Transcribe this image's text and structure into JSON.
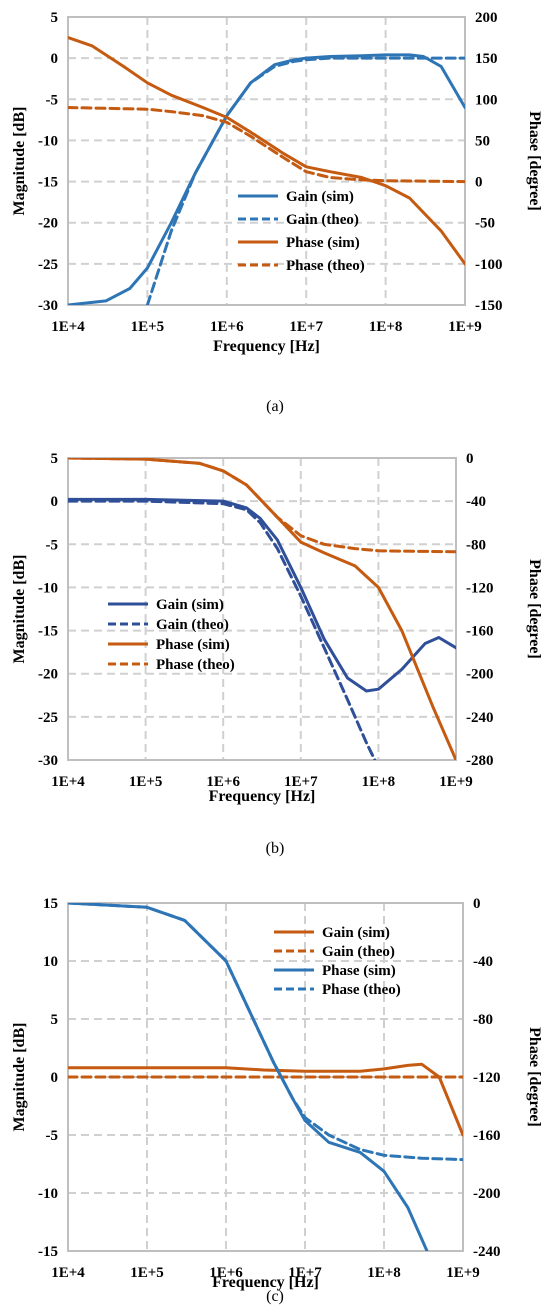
{
  "colors": {
    "blue": "#2e75b6",
    "navy": "#2f4f99",
    "orange": "#c55a11",
    "grid": "#d0d0d0",
    "frame": "#bfbfbf"
  },
  "chart_data": [
    {
      "type": "line",
      "caption": "(a)",
      "xlabel": "Frequency [Hz]",
      "ylabel": "Magnitude [dB]",
      "y2label": "Phase [degree]",
      "x_scale": "log",
      "xlim": [
        10000,
        1000000000
      ],
      "x_tick_labels": [
        "1E+4",
        "1E+5",
        "1E+6",
        "1E+7",
        "1E+8",
        "1E+9"
      ],
      "ylim": [
        -30,
        5
      ],
      "y_ticks": [
        5,
        0,
        -5,
        -10,
        -15,
        -20,
        -25,
        -30
      ],
      "y2lim": [
        -150,
        200
      ],
      "y2_ticks": [
        200,
        150,
        100,
        50,
        0,
        -50,
        -100,
        -150
      ],
      "grid": true,
      "legend_position": "center-right",
      "series": [
        {
          "name": "Gain (sim)",
          "axis": "left",
          "color": "#2e75b6",
          "dash": false,
          "x": [
            10000,
            30000,
            60000,
            100000,
            200000,
            400000,
            1000000,
            2000000,
            4000000,
            7000000,
            10000000,
            20000000,
            50000000,
            100000000,
            200000000,
            300000000,
            500000000,
            1000000000
          ],
          "y": [
            -30,
            -29.5,
            -28,
            -25.5,
            -20,
            -14,
            -7,
            -3,
            -0.8,
            -0.2,
            0,
            0.2,
            0.3,
            0.4,
            0.4,
            0.2,
            -1,
            -6
          ]
        },
        {
          "name": "Gain (theo)",
          "axis": "left",
          "color": "#2e75b6",
          "dash": true,
          "x": [
            100000,
            200000,
            400000,
            1000000,
            2000000,
            4000000,
            7000000,
            10000000,
            20000000,
            100000000,
            1000000000
          ],
          "y": [
            -30,
            -21,
            -14,
            -7,
            -3,
            -1,
            -0.4,
            -0.2,
            0,
            0,
            0
          ]
        },
        {
          "name": "Phase (sim)",
          "axis": "right",
          "color": "#c55a11",
          "dash": false,
          "x": [
            10000,
            20000,
            50000,
            100000,
            200000,
            500000,
            1000000,
            2000000,
            5000000,
            10000000,
            20000000,
            50000000,
            100000000,
            200000000,
            500000000,
            1000000000
          ],
          "y": [
            175,
            165,
            140,
            120,
            105,
            90,
            78,
            60,
            35,
            18,
            12,
            5,
            -5,
            -20,
            -60,
            -100
          ]
        },
        {
          "name": "Phase (theo)",
          "axis": "right",
          "color": "#c55a11",
          "dash": true,
          "x": [
            10000,
            100000,
            200000,
            500000,
            1000000,
            2000000,
            5000000,
            10000000,
            20000000,
            50000000,
            100000000,
            1000000000
          ],
          "y": [
            90,
            88,
            85,
            80,
            72,
            55,
            30,
            12,
            5,
            2,
            1,
            0
          ]
        }
      ]
    },
    {
      "type": "line",
      "caption": "(b)",
      "xlabel": "Frequency [Hz]",
      "ylabel": "Magnitude [dB]",
      "y2label": "Phase [degree]",
      "x_scale": "log",
      "xlim": [
        10000,
        1000000000
      ],
      "x_tick_labels": [
        "1E+4",
        "1E+5",
        "1E+6",
        "1E+7",
        "1E+8",
        "1E+9"
      ],
      "ylim": [
        -30,
        5
      ],
      "y_ticks": [
        5,
        0,
        -5,
        -10,
        -15,
        -20,
        -25,
        -30
      ],
      "y2lim": [
        -280,
        0
      ],
      "y2_ticks": [
        0,
        -40,
        -80,
        -120,
        -160,
        -200,
        -240,
        -280
      ],
      "grid": true,
      "legend_position": "center-left",
      "series": [
        {
          "name": "Gain (sim)",
          "axis": "left",
          "color": "#2f4f99",
          "dash": false,
          "x": [
            10000,
            100000,
            1000000,
            2000000,
            3000000,
            5000000,
            10000000,
            20000000,
            40000000,
            70000000,
            100000000,
            200000000,
            400000000,
            600000000,
            1000000000
          ],
          "y": [
            0.2,
            0.2,
            0,
            -0.8,
            -2,
            -4.5,
            -10,
            -16,
            -20.5,
            -22,
            -21.8,
            -19.5,
            -16.5,
            -15.8,
            -17
          ]
        },
        {
          "name": "Gain (theo)",
          "axis": "left",
          "color": "#2f4f99",
          "dash": true,
          "x": [
            10000,
            100000,
            1000000,
            2000000,
            3000000,
            5000000,
            10000000,
            20000000,
            40000000,
            70000000,
            90000000
          ],
          "y": [
            0,
            0,
            -0.3,
            -1,
            -2.5,
            -5.5,
            -11,
            -17,
            -23,
            -28,
            -30
          ]
        },
        {
          "name": "Phase (sim)",
          "axis": "right",
          "color": "#c55a11",
          "dash": false,
          "x": [
            10000,
            100000,
            500000,
            1000000,
            2000000,
            5000000,
            10000000,
            20000000,
            50000000,
            100000000,
            200000000,
            500000000,
            1000000000
          ],
          "y": [
            0,
            -1,
            -5,
            -12,
            -25,
            -55,
            -78,
            -88,
            -100,
            -120,
            -160,
            -230,
            -280
          ]
        },
        {
          "name": "Phase (theo)",
          "axis": "right",
          "color": "#c55a11",
          "dash": true,
          "x": [
            10000,
            100000,
            500000,
            1000000,
            2000000,
            5000000,
            10000000,
            20000000,
            50000000,
            100000000,
            1000000000
          ],
          "y": [
            0,
            -1,
            -5,
            -12,
            -25,
            -55,
            -72,
            -80,
            -84,
            -86,
            -87
          ]
        }
      ]
    },
    {
      "type": "line",
      "caption": "(c)",
      "xlabel": "Frequency [Hz]",
      "ylabel": "Magnitude [dB]",
      "y2label": "Phase [degree]",
      "x_scale": "log",
      "xlim": [
        10000,
        1000000000
      ],
      "x_tick_labels": [
        "1E+4",
        "1E+5",
        "1E+6",
        "1E+7",
        "1E+8",
        "1E+9"
      ],
      "ylim": [
        -15,
        15
      ],
      "y_ticks": [
        15,
        10,
        5,
        0,
        -5,
        -10,
        -15
      ],
      "y2lim": [
        -240,
        0
      ],
      "y2_ticks": [
        0,
        -40,
        -80,
        -120,
        -160,
        -200,
        -240
      ],
      "grid": true,
      "legend_position": "top-right",
      "series": [
        {
          "name": "Gain (sim)",
          "axis": "left",
          "color": "#c55a11",
          "dash": false,
          "x": [
            10000,
            100000,
            1000000,
            3000000,
            10000000,
            50000000,
            100000000,
            200000000,
            300000000,
            500000000,
            1000000000
          ],
          "y": [
            0.8,
            0.8,
            0.8,
            0.6,
            0.5,
            0.5,
            0.7,
            1,
            1.1,
            0,
            -5
          ]
        },
        {
          "name": "Gain (theo)",
          "axis": "left",
          "color": "#c55a11",
          "dash": true,
          "x": [
            10000,
            1000000000
          ],
          "y": [
            0,
            0
          ]
        },
        {
          "name": "Phase (sim)",
          "axis": "right",
          "color": "#2e75b6",
          "dash": false,
          "x": [
            10000,
            100000,
            300000,
            1000000,
            2000000,
            4000000,
            7000000,
            10000000,
            20000000,
            50000000,
            100000000,
            200000000,
            350000000
          ],
          "y": [
            0,
            -3,
            -12,
            -40,
            -75,
            -110,
            -135,
            -150,
            -165,
            -172,
            -185,
            -210,
            -240
          ]
        },
        {
          "name": "Phase (theo)",
          "axis": "right",
          "color": "#2e75b6",
          "dash": true,
          "x": [
            10000,
            100000,
            300000,
            1000000,
            2000000,
            4000000,
            7000000,
            10000000,
            20000000,
            50000000,
            100000000,
            300000000,
            1000000000
          ],
          "y": [
            0,
            -3,
            -12,
            -40,
            -75,
            -110,
            -135,
            -148,
            -160,
            -170,
            -174,
            -176,
            -177
          ]
        }
      ]
    }
  ]
}
